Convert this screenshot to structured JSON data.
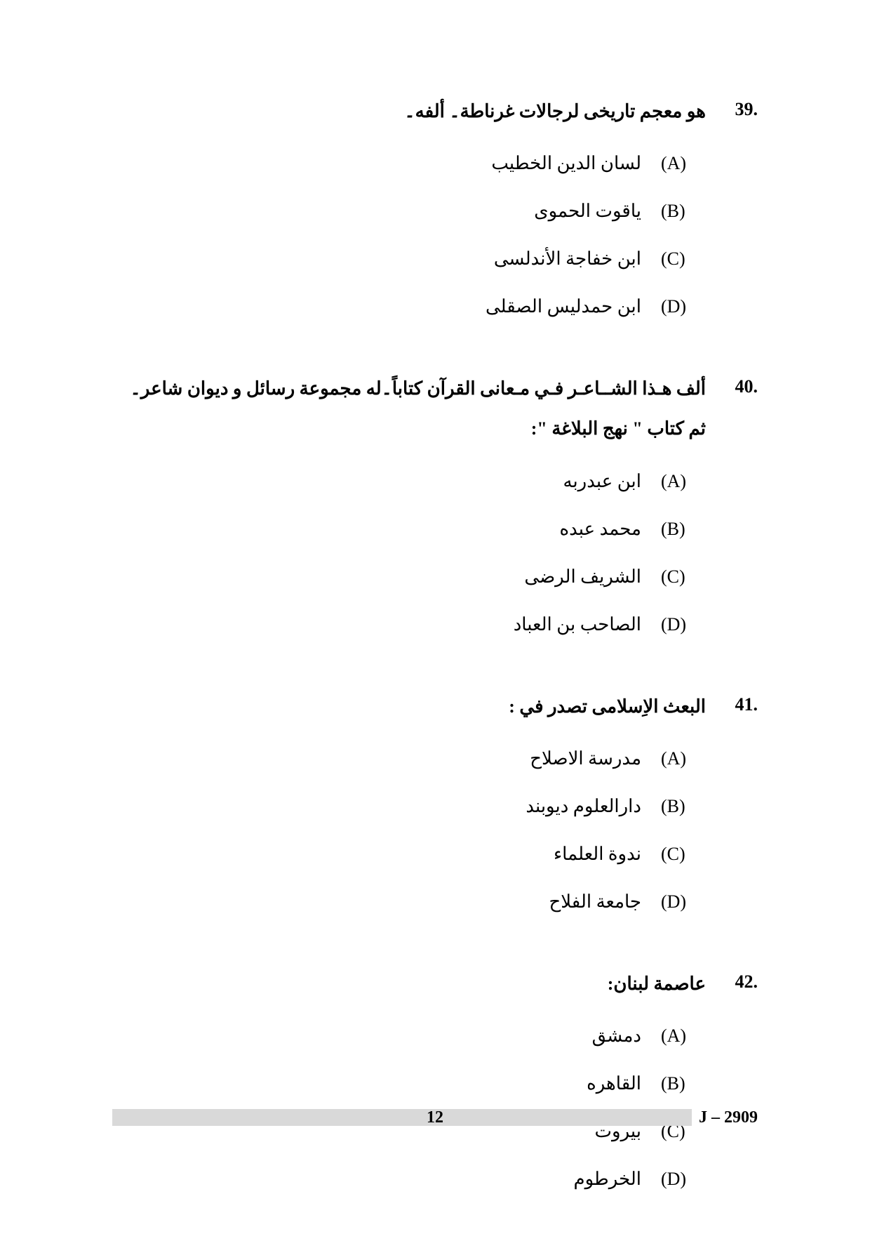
{
  "page": {
    "number": "12",
    "code": "J – 2909",
    "bar_color": "#d9d9d9",
    "bg_color": "#ffffff",
    "text_color": "#000000",
    "body_fontsize": 26,
    "footer_fontsize": 24
  },
  "questions": [
    {
      "num": "39.",
      "text": "هو معجم تاريخى لرجالات غرناطة۔ ألفه۔",
      "options": [
        {
          "letter": "(A)",
          "text": "لسان الدين الخطيب"
        },
        {
          "letter": "(B)",
          "text": "ياقوت الحموى"
        },
        {
          "letter": "(C)",
          "text": "ابن خفاجة الأندلسى"
        },
        {
          "letter": "(D)",
          "text": "ابن حمدليس الصقلى"
        }
      ]
    },
    {
      "num": "40.",
      "text": "ألف هـذا الشــاعـر فـي مـعانى القرآن كتاباً۔له مجموعة رسائل و ديوان شاعر۔ ثم كتاب \" نهج البلاغة \":",
      "options": [
        {
          "letter": "(A)",
          "text": "ابن عبدربه"
        },
        {
          "letter": "(B)",
          "text": "محمد عبده"
        },
        {
          "letter": "(C)",
          "text": "الشريف الرضى"
        },
        {
          "letter": "(D)",
          "text": "الصاحب بن العباد"
        }
      ]
    },
    {
      "num": "41.",
      "text": "البعث الاِسلامى تصدر في :",
      "options": [
        {
          "letter": "(A)",
          "text": "مدرسة الاصلاح"
        },
        {
          "letter": "(B)",
          "text": "دارالعلوم ديوبند"
        },
        {
          "letter": "(C)",
          "text": "ندوة العلماء"
        },
        {
          "letter": "(D)",
          "text": "جامعة الفلاح"
        }
      ]
    },
    {
      "num": "42.",
      "text": "عاصمة لبنان:",
      "options": [
        {
          "letter": "(A)",
          "text": "دمشق"
        },
        {
          "letter": "(B)",
          "text": "القاهره"
        },
        {
          "letter": "(C)",
          "text": "بيروت"
        },
        {
          "letter": "(D)",
          "text": "الخرطوم"
        }
      ]
    }
  ]
}
